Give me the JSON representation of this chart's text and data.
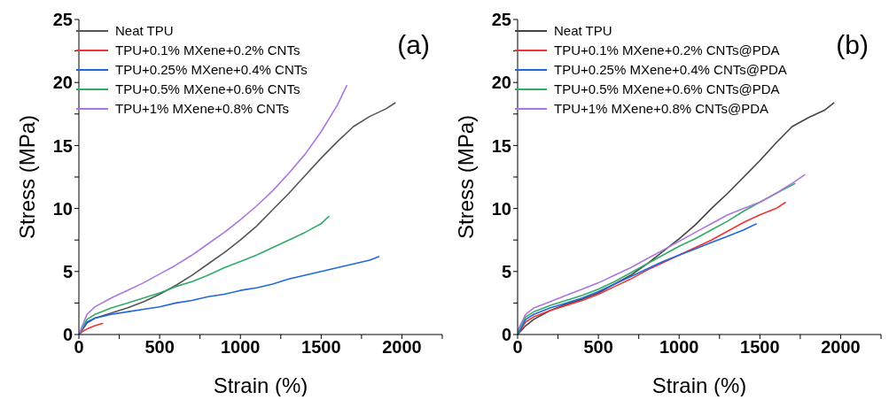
{
  "chart_data": [
    {
      "type": "line",
      "xlabel": "Strain (%)",
      "ylabel": "Stress (MPa)",
      "annotations": [
        "(a)"
      ],
      "legend": "top left",
      "grid": false,
      "xlim": [
        0,
        2250
      ],
      "ylim": [
        0,
        25
      ],
      "xticks": [
        0,
        {
          "value": 250,
          "label": null
        },
        500,
        {
          "value": 750,
          "label": null
        },
        1000,
        {
          "value": 1250,
          "label": null
        },
        1500,
        {
          "value": 1750,
          "label": null
        },
        2000,
        {
          "value": 2250,
          "label": null
        }
      ],
      "yticks": [
        0,
        {
          "value": 2.5,
          "label": null
        },
        5,
        {
          "value": 7.5,
          "label": null
        },
        10,
        {
          "value": 12.5,
          "label": null
        },
        15,
        {
          "value": 17.5,
          "label": null
        },
        20,
        {
          "value": 22.5,
          "label": null
        },
        25
      ],
      "series": [
        {
          "name": "Neat TPU",
          "color": "#555555",
          "x": [
            0,
            50,
            100,
            200,
            300,
            400,
            500,
            600,
            700,
            800,
            900,
            1000,
            1100,
            1200,
            1300,
            1400,
            1500,
            1600,
            1700,
            1800,
            1900,
            1960
          ],
          "values": [
            0,
            0.9,
            1.3,
            1.7,
            2.1,
            2.6,
            3.2,
            3.9,
            4.7,
            5.6,
            6.5,
            7.5,
            8.6,
            9.9,
            11.2,
            12.6,
            14.0,
            15.3,
            16.5,
            17.3,
            17.9,
            18.4
          ]
        },
        {
          "name": "TPU+0.1% MXene+0.2% CNTs",
          "color": "#ee3333",
          "x": [
            0,
            30,
            60,
            100,
            150
          ],
          "values": [
            0,
            0.3,
            0.5,
            0.7,
            0.9
          ]
        },
        {
          "name": "TPU+0.25% MXene+0.4% CNTs",
          "color": "#2266dd",
          "x": [
            0,
            50,
            100,
            200,
            300,
            400,
            500,
            600,
            700,
            800,
            900,
            1000,
            1100,
            1200,
            1300,
            1400,
            1500,
            1600,
            1700,
            1800,
            1860
          ],
          "values": [
            0,
            1.0,
            1.3,
            1.6,
            1.8,
            2.0,
            2.2,
            2.5,
            2.7,
            3.0,
            3.2,
            3.5,
            3.7,
            4.0,
            4.4,
            4.7,
            5.0,
            5.3,
            5.6,
            5.9,
            6.2
          ]
        },
        {
          "name": "TPU+0.5% MXene+0.6% CNTs",
          "color": "#33aa66",
          "x": [
            0,
            50,
            100,
            200,
            300,
            400,
            500,
            600,
            700,
            800,
            900,
            1000,
            1100,
            1200,
            1300,
            1400,
            1500,
            1550
          ],
          "values": [
            0,
            1.2,
            1.6,
            2.1,
            2.5,
            2.9,
            3.3,
            3.8,
            4.2,
            4.7,
            5.3,
            5.8,
            6.3,
            6.9,
            7.5,
            8.1,
            8.8,
            9.4
          ]
        },
        {
          "name": "TPU+1% MXene+0.8% CNTs",
          "color": "#aa77dd",
          "x": [
            0,
            50,
            100,
            200,
            300,
            400,
            500,
            600,
            700,
            800,
            900,
            1000,
            1100,
            1200,
            1300,
            1400,
            1500,
            1600,
            1660
          ],
          "values": [
            0,
            1.6,
            2.2,
            2.9,
            3.5,
            4.1,
            4.8,
            5.5,
            6.3,
            7.2,
            8.1,
            9.1,
            10.2,
            11.4,
            12.8,
            14.3,
            16.1,
            18.2,
            19.8
          ]
        }
      ]
    },
    {
      "type": "line",
      "xlabel": "Strain (%)",
      "ylabel": "Stress (MPa)",
      "annotations": [
        "(b)"
      ],
      "legend": "top left",
      "grid": false,
      "xlim": [
        0,
        2250
      ],
      "ylim": [
        0,
        25
      ],
      "xticks": [
        0,
        {
          "value": 250,
          "label": null
        },
        500,
        {
          "value": 750,
          "label": null
        },
        1000,
        {
          "value": 1250,
          "label": null
        },
        1500,
        {
          "value": 1750,
          "label": null
        },
        2000,
        {
          "value": 2250,
          "label": null
        }
      ],
      "yticks": [
        0,
        {
          "value": 2.5,
          "label": null
        },
        5,
        {
          "value": 7.5,
          "label": null
        },
        10,
        {
          "value": 12.5,
          "label": null
        },
        15,
        {
          "value": 17.5,
          "label": null
        },
        20,
        {
          "value": 22.5,
          "label": null
        },
        25
      ],
      "series": [
        {
          "name": "Neat TPU",
          "color": "#444444",
          "x": [
            0,
            50,
            100,
            200,
            300,
            400,
            500,
            600,
            700,
            800,
            900,
            1000,
            1100,
            1200,
            1300,
            1400,
            1500,
            1600,
            1700,
            1800,
            1900,
            1960
          ],
          "values": [
            0,
            0.7,
            1.2,
            1.9,
            2.4,
            2.8,
            3.3,
            4.0,
            4.7,
            5.6,
            6.6,
            7.6,
            8.7,
            10.0,
            11.2,
            12.5,
            13.8,
            15.2,
            16.5,
            17.2,
            17.8,
            18.4
          ]
        },
        {
          "name": "TPU+0.1% MXene+0.2% CNTs@PDA",
          "color": "#ee3333",
          "x": [
            0,
            50,
            100,
            200,
            300,
            400,
            500,
            600,
            700,
            800,
            900,
            1000,
            1100,
            1200,
            1300,
            1400,
            1500,
            1600,
            1660
          ],
          "values": [
            0,
            1.0,
            1.4,
            1.9,
            2.3,
            2.7,
            3.2,
            3.8,
            4.4,
            5.1,
            5.7,
            6.3,
            6.9,
            7.5,
            8.2,
            8.9,
            9.5,
            10.0,
            10.5
          ]
        },
        {
          "name": "TPU+0.25% MXene+0.4% CNTs@PDA",
          "color": "#2266dd",
          "x": [
            0,
            50,
            100,
            200,
            300,
            400,
            500,
            600,
            700,
            800,
            900,
            1000,
            1100,
            1200,
            1300,
            1400,
            1480
          ],
          "values": [
            0,
            1.2,
            1.6,
            2.1,
            2.5,
            2.9,
            3.4,
            4.0,
            4.6,
            5.2,
            5.8,
            6.3,
            6.8,
            7.3,
            7.8,
            8.3,
            8.8
          ]
        },
        {
          "name": "TPU+0.5% MXene+0.6% CNTs@PDA",
          "color": "#33aa66",
          "x": [
            0,
            50,
            100,
            200,
            300,
            400,
            500,
            600,
            700,
            800,
            900,
            1000,
            1100,
            1200,
            1300,
            1400,
            1500,
            1600,
            1720
          ],
          "values": [
            0.2,
            1.4,
            1.8,
            2.3,
            2.7,
            3.1,
            3.6,
            4.2,
            4.9,
            5.6,
            6.3,
            7.0,
            7.6,
            8.3,
            9.0,
            9.8,
            10.5,
            11.2,
            12.0
          ]
        },
        {
          "name": "TPU+1% MXene+0.8% CNTs@PDA",
          "color": "#aa77dd",
          "x": [
            0,
            50,
            100,
            200,
            300,
            400,
            500,
            600,
            700,
            800,
            900,
            1000,
            1100,
            1200,
            1300,
            1400,
            1500,
            1600,
            1700,
            1780
          ],
          "values": [
            0.3,
            1.6,
            2.1,
            2.6,
            3.1,
            3.6,
            4.1,
            4.7,
            5.3,
            6.0,
            6.7,
            7.4,
            8.1,
            8.8,
            9.5,
            10.0,
            10.5,
            11.2,
            12.0,
            12.7
          ]
        }
      ]
    }
  ]
}
